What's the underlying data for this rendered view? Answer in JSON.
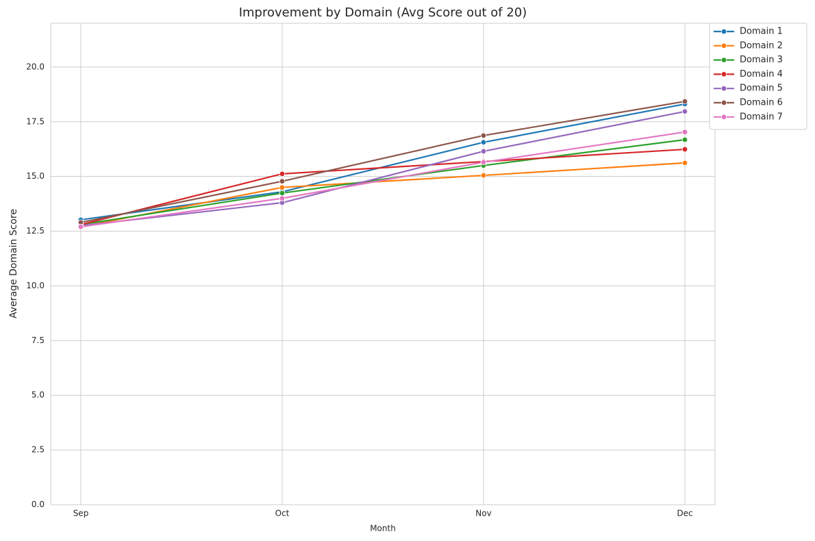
{
  "chart_data": {
    "type": "line",
    "title": "Improvement by Domain (Avg Score out of 20)",
    "x_label": "Month",
    "y_label": "Average Domain Score",
    "categories": [
      "Sep",
      "Oct",
      "Nov",
      "Dec"
    ],
    "series": [
      {
        "name": "Domain 1",
        "color": "#1f77b4",
        "values": [
          13.02,
          14.3,
          16.56,
          18.31
        ]
      },
      {
        "name": "Domain 2",
        "color": "#ff7f0e",
        "values": [
          12.7,
          14.5,
          15.05,
          15.62
        ]
      },
      {
        "name": "Domain 3",
        "color": "#2ca02c",
        "values": [
          12.8,
          14.24,
          15.5,
          16.68
        ]
      },
      {
        "name": "Domain 4",
        "color": "#d62728",
        "values": [
          12.8,
          15.12,
          15.68,
          16.24
        ]
      },
      {
        "name": "Domain 5",
        "color": "#9467bd",
        "values": [
          12.75,
          13.8,
          16.15,
          17.97
        ]
      },
      {
        "name": "Domain 6",
        "color": "#8c564b",
        "values": [
          12.9,
          14.78,
          16.87,
          18.43
        ]
      },
      {
        "name": "Domain 7",
        "color": "#e377c2",
        "values": [
          12.7,
          14.0,
          15.65,
          17.03
        ]
      }
    ],
    "ylim": [
      0,
      22
    ],
    "yticks": [
      {
        "value": 0,
        "label": "0.0"
      },
      2.5,
      {
        "value": 5,
        "label": "5.0"
      },
      7.5,
      {
        "value": 10,
        "label": "10.0"
      },
      12.5,
      {
        "value": 15,
        "label": "15.0"
      },
      17.5,
      {
        "value": 20,
        "label": "20.0"
      }
    ],
    "grid": true,
    "legend": "outside-upper-right"
  }
}
